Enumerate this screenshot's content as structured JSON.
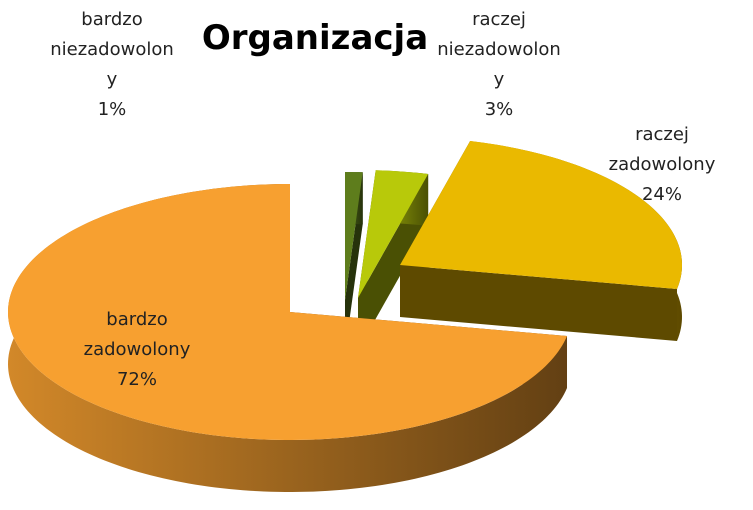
{
  "chart_data": {
    "type": "pie",
    "title": "Organizacja",
    "categories": [
      "bardzo niezadowolony",
      "raczej niezadowolony",
      "raczej zadowolony",
      "bardzo zadowolony"
    ],
    "values": [
      1,
      3,
      24,
      72
    ],
    "value_labels": [
      "1%",
      "3%",
      "24%",
      "72%"
    ],
    "colors": [
      "#5e7d1c",
      "#b8c90a",
      "#eab900",
      "#f7a030"
    ]
  }
}
